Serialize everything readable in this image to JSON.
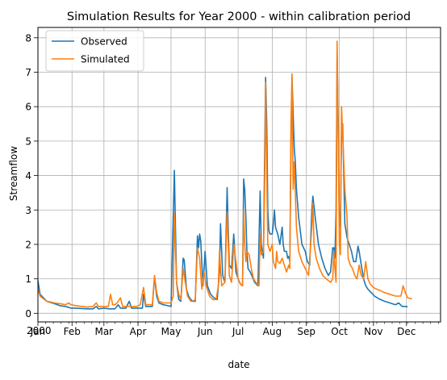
{
  "chart_data": {
    "type": "line",
    "title": "Simulation Results for Year 2000 - within calibration period",
    "xlabel": "date",
    "ylabel": "Streamflow",
    "year_label": "2000",
    "xlim": [
      0,
      366
    ],
    "ylim": [
      -0.25,
      8.3
    ],
    "yticks": [
      0,
      1,
      2,
      3,
      4,
      5,
      6,
      7,
      8
    ],
    "grid": true,
    "legend": {
      "placement": "top-left",
      "entries": [
        "Observed",
        "Simulated"
      ]
    },
    "months": [
      {
        "label": "Jan",
        "day": 0
      },
      {
        "label": "Feb",
        "day": 31
      },
      {
        "label": "Mar",
        "day": 60
      },
      {
        "label": "Apr",
        "day": 91
      },
      {
        "label": "May",
        "day": 121
      },
      {
        "label": "Jun",
        "day": 152
      },
      {
        "label": "Jul",
        "day": 182
      },
      {
        "label": "Aug",
        "day": 213
      },
      {
        "label": "Sep",
        "day": 244
      },
      {
        "label": "Oct",
        "day": 274
      },
      {
        "label": "Nov",
        "day": 305
      },
      {
        "label": "Dec",
        "day": 335
      }
    ],
    "series": [
      {
        "name": "Observed",
        "color": "#1f77b4",
        "points": [
          [
            0,
            0.95
          ],
          [
            2,
            0.55
          ],
          [
            5,
            0.45
          ],
          [
            8,
            0.35
          ],
          [
            11,
            0.32
          ],
          [
            15,
            0.28
          ],
          [
            20,
            0.22
          ],
          [
            25,
            0.2
          ],
          [
            30,
            0.15
          ],
          [
            35,
            0.15
          ],
          [
            40,
            0.14
          ],
          [
            45,
            0.13
          ],
          [
            50,
            0.13
          ],
          [
            53,
            0.2
          ],
          [
            55,
            0.13
          ],
          [
            60,
            0.15
          ],
          [
            65,
            0.13
          ],
          [
            70,
            0.13
          ],
          [
            73,
            0.25
          ],
          [
            75,
            0.15
          ],
          [
            80,
            0.15
          ],
          [
            83,
            0.35
          ],
          [
            85,
            0.15
          ],
          [
            90,
            0.15
          ],
          [
            95,
            0.15
          ],
          [
            96,
            0.55
          ],
          [
            98,
            0.2
          ],
          [
            100,
            0.2
          ],
          [
            104,
            0.2
          ],
          [
            106,
            1.05
          ],
          [
            108,
            0.5
          ],
          [
            110,
            0.3
          ],
          [
            114,
            0.25
          ],
          [
            118,
            0.22
          ],
          [
            121,
            0.2
          ],
          [
            124,
            4.15
          ],
          [
            126,
            0.9
          ],
          [
            128,
            0.4
          ],
          [
            130,
            0.35
          ],
          [
            132,
            1.6
          ],
          [
            133,
            1.55
          ],
          [
            135,
            0.7
          ],
          [
            137,
            0.5
          ],
          [
            139,
            0.4
          ],
          [
            141,
            0.35
          ],
          [
            143,
            0.35
          ],
          [
            145,
            2.25
          ],
          [
            146,
            1.9
          ],
          [
            147,
            2.3
          ],
          [
            148,
            2.1
          ],
          [
            150,
            0.8
          ],
          [
            152,
            1.8
          ],
          [
            154,
            0.8
          ],
          [
            157,
            0.55
          ],
          [
            160,
            0.45
          ],
          [
            163,
            0.4
          ],
          [
            165,
            1.2
          ],
          [
            166,
            2.6
          ],
          [
            168,
            1.1
          ],
          [
            170,
            0.9
          ],
          [
            172,
            3.65
          ],
          [
            173,
            2.4
          ],
          [
            174,
            1.4
          ],
          [
            176,
            1.3
          ],
          [
            178,
            2.3
          ],
          [
            180,
            1.2
          ],
          [
            182,
            1.0
          ],
          [
            184,
            0.85
          ],
          [
            186,
            0.8
          ],
          [
            187,
            3.9
          ],
          [
            188,
            3.6
          ],
          [
            189,
            2.8
          ],
          [
            190,
            1.8
          ],
          [
            191,
            1.3
          ],
          [
            193,
            1.2
          ],
          [
            195,
            1.05
          ],
          [
            197,
            0.9
          ],
          [
            200,
            0.8
          ],
          [
            202,
            3.55
          ],
          [
            203,
            2.0
          ],
          [
            205,
            1.6
          ],
          [
            206,
            4.4
          ],
          [
            207,
            6.85
          ],
          [
            208,
            5.5
          ],
          [
            209,
            3.0
          ],
          [
            210,
            2.4
          ],
          [
            211,
            2.3
          ],
          [
            213,
            2.3
          ],
          [
            214,
            2.6
          ],
          [
            215,
            3.0
          ],
          [
            216,
            2.5
          ],
          [
            218,
            2.3
          ],
          [
            220,
            2.0
          ],
          [
            222,
            2.5
          ],
          [
            223,
            2.0
          ],
          [
            224,
            1.8
          ],
          [
            226,
            1.8
          ],
          [
            227,
            1.6
          ],
          [
            228,
            1.65
          ],
          [
            229,
            1.5
          ],
          [
            230,
            4.8
          ],
          [
            231,
            6.85
          ],
          [
            232,
            5.8
          ],
          [
            233,
            4.8
          ],
          [
            234,
            4.4
          ],
          [
            235,
            3.6
          ],
          [
            237,
            2.8
          ],
          [
            240,
            2.0
          ],
          [
            243,
            1.8
          ],
          [
            245,
            1.5
          ],
          [
            247,
            1.4
          ],
          [
            249,
            3.0
          ],
          [
            250,
            3.4
          ],
          [
            252,
            2.8
          ],
          [
            255,
            2.0
          ],
          [
            258,
            1.6
          ],
          [
            261,
            1.3
          ],
          [
            264,
            1.1
          ],
          [
            266,
            1.2
          ],
          [
            268,
            1.9
          ],
          [
            269,
            1.9
          ],
          [
            270,
            1.6
          ],
          [
            271,
            3.0
          ],
          [
            272,
            7.55
          ],
          [
            273,
            5.5
          ],
          [
            274,
            2.5
          ],
          [
            275,
            2.6
          ],
          [
            276,
            5.2
          ],
          [
            277,
            5.5
          ],
          [
            279,
            2.6
          ],
          [
            281,
            2.2
          ],
          [
            283,
            2.0
          ],
          [
            285,
            1.8
          ],
          [
            287,
            1.5
          ],
          [
            289,
            1.5
          ],
          [
            291,
            1.95
          ],
          [
            292,
            1.8
          ],
          [
            294,
            1.4
          ],
          [
            296,
            1.0
          ],
          [
            298,
            0.8
          ],
          [
            300,
            0.7
          ],
          [
            303,
            0.6
          ],
          [
            306,
            0.5
          ],
          [
            310,
            0.42
          ],
          [
            315,
            0.35
          ],
          [
            320,
            0.3
          ],
          [
            325,
            0.25
          ],
          [
            328,
            0.3
          ],
          [
            331,
            0.2
          ],
          [
            335,
            0.2
          ],
          [
            336,
            0.18
          ]
        ]
      },
      {
        "name": "Simulated",
        "color": "#ff7f0e",
        "points": [
          [
            0,
            0.7
          ],
          [
            2,
            0.5
          ],
          [
            5,
            0.42
          ],
          [
            8,
            0.35
          ],
          [
            11,
            0.33
          ],
          [
            15,
            0.3
          ],
          [
            20,
            0.28
          ],
          [
            25,
            0.25
          ],
          [
            28,
            0.3
          ],
          [
            30,
            0.25
          ],
          [
            35,
            0.22
          ],
          [
            40,
            0.2
          ],
          [
            45,
            0.18
          ],
          [
            50,
            0.2
          ],
          [
            53,
            0.3
          ],
          [
            55,
            0.2
          ],
          [
            60,
            0.2
          ],
          [
            64,
            0.2
          ],
          [
            66,
            0.55
          ],
          [
            68,
            0.25
          ],
          [
            70,
            0.25
          ],
          [
            72,
            0.3
          ],
          [
            75,
            0.45
          ],
          [
            77,
            0.2
          ],
          [
            80,
            0.2
          ],
          [
            85,
            0.2
          ],
          [
            90,
            0.2
          ],
          [
            93,
            0.25
          ],
          [
            96,
            0.75
          ],
          [
            98,
            0.25
          ],
          [
            100,
            0.25
          ],
          [
            104,
            0.25
          ],
          [
            106,
            1.1
          ],
          [
            108,
            0.6
          ],
          [
            110,
            0.35
          ],
          [
            114,
            0.3
          ],
          [
            118,
            0.3
          ],
          [
            121,
            0.3
          ],
          [
            123,
            0.5
          ],
          [
            124,
            2.9
          ],
          [
            126,
            0.9
          ],
          [
            128,
            0.55
          ],
          [
            130,
            0.4
          ],
          [
            132,
            1.3
          ],
          [
            134,
            0.9
          ],
          [
            136,
            0.5
          ],
          [
            139,
            0.35
          ],
          [
            141,
            0.35
          ],
          [
            143,
            0.4
          ],
          [
            145,
            1.9
          ],
          [
            147,
            1.6
          ],
          [
            149,
            0.7
          ],
          [
            151,
            1.2
          ],
          [
            153,
            0.8
          ],
          [
            156,
            0.5
          ],
          [
            159,
            0.4
          ],
          [
            162,
            0.4
          ],
          [
            164,
            0.8
          ],
          [
            165,
            1.8
          ],
          [
            167,
            0.8
          ],
          [
            170,
            0.9
          ],
          [
            172,
            2.95
          ],
          [
            173,
            2.0
          ],
          [
            174,
            1.1
          ],
          [
            176,
            0.9
          ],
          [
            178,
            2.0
          ],
          [
            180,
            1.5
          ],
          [
            182,
            1.0
          ],
          [
            184,
            0.85
          ],
          [
            186,
            0.8
          ],
          [
            187,
            3.0
          ],
          [
            188,
            2.0
          ],
          [
            189,
            1.5
          ],
          [
            190,
            1.8
          ],
          [
            192,
            1.7
          ],
          [
            194,
            1.3
          ],
          [
            196,
            1.0
          ],
          [
            198,
            0.9
          ],
          [
            201,
            0.8
          ],
          [
            202,
            2.3
          ],
          [
            203,
            1.7
          ],
          [
            205,
            1.8
          ],
          [
            206,
            3.5
          ],
          [
            207,
            6.7
          ],
          [
            208,
            4.0
          ],
          [
            209,
            2.0
          ],
          [
            211,
            1.8
          ],
          [
            213,
            2.0
          ],
          [
            214,
            1.5
          ],
          [
            216,
            1.3
          ],
          [
            217,
            1.8
          ],
          [
            218,
            1.5
          ],
          [
            220,
            1.45
          ],
          [
            222,
            1.6
          ],
          [
            224,
            1.4
          ],
          [
            226,
            1.2
          ],
          [
            228,
            1.4
          ],
          [
            229,
            1.3
          ],
          [
            230,
            5.5
          ],
          [
            231,
            6.95
          ],
          [
            232,
            3.6
          ],
          [
            233,
            4.4
          ],
          [
            234,
            3.5
          ],
          [
            235,
            2.5
          ],
          [
            237,
            1.8
          ],
          [
            240,
            1.5
          ],
          [
            243,
            1.3
          ],
          [
            246,
            1.1
          ],
          [
            249,
            2.5
          ],
          [
            250,
            3.2
          ],
          [
            251,
            2.0
          ],
          [
            253,
            1.6
          ],
          [
            256,
            1.3
          ],
          [
            259,
            1.1
          ],
          [
            262,
            1.0
          ],
          [
            266,
            0.9
          ],
          [
            268,
            1.0
          ],
          [
            269,
            1.8
          ],
          [
            270,
            1.3
          ],
          [
            271,
            0.9
          ],
          [
            272,
            7.9
          ],
          [
            273,
            5.0
          ],
          [
            274,
            2.0
          ],
          [
            275,
            1.7
          ],
          [
            276,
            6.0
          ],
          [
            277,
            5.2
          ],
          [
            279,
            3.6
          ],
          [
            281,
            2.8
          ],
          [
            282,
            1.6
          ],
          [
            284,
            1.4
          ],
          [
            286,
            1.3
          ],
          [
            288,
            1.1
          ],
          [
            290,
            1.0
          ],
          [
            292,
            1.4
          ],
          [
            294,
            1.1
          ],
          [
            296,
            1.0
          ],
          [
            298,
            1.5
          ],
          [
            300,
            1.0
          ],
          [
            302,
            0.85
          ],
          [
            305,
            0.75
          ],
          [
            308,
            0.7
          ],
          [
            312,
            0.65
          ],
          [
            315,
            0.6
          ],
          [
            320,
            0.55
          ],
          [
            325,
            0.5
          ],
          [
            328,
            0.5
          ],
          [
            330,
            0.5
          ],
          [
            332,
            0.8
          ],
          [
            334,
            0.6
          ],
          [
            336,
            0.45
          ],
          [
            340,
            0.42
          ]
        ]
      }
    ]
  }
}
